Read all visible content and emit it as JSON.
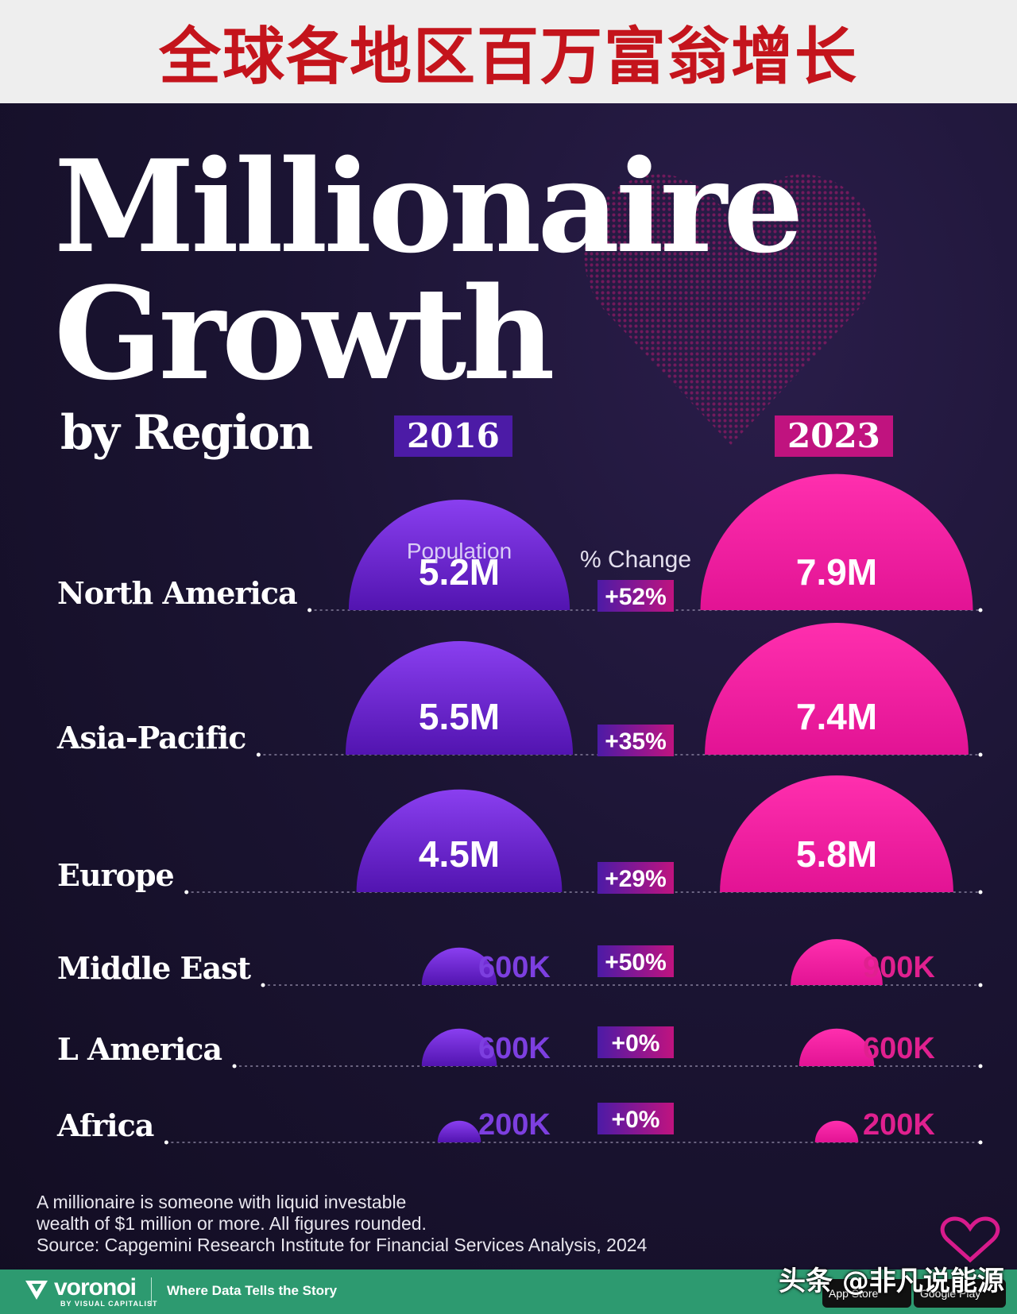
{
  "header": {
    "cn_title": "全球各地区百万富翁增长"
  },
  "title": {
    "line1": "Millionaire",
    "line2": "Growth",
    "subtitle": "by Region"
  },
  "years": [
    "2016",
    "2023"
  ],
  "col_labels": {
    "population": "Population",
    "pct_change": "% Change"
  },
  "chart_data": {
    "type": "bubble",
    "title": "Millionaire Growth by Region",
    "categories": [
      "North America",
      "Asia-Pacific",
      "Europe",
      "Middle East",
      "L      America",
      "Africa"
    ],
    "series": [
      {
        "name": "2016",
        "values": [
          5.2,
          5.5,
          4.5,
          0.6,
          0.6,
          0.2
        ],
        "labels": [
          "5.2M",
          "5.5M",
          "4.5M",
          "600K",
          "600K",
          "200K"
        ]
      },
      {
        "name": "2023",
        "values": [
          7.9,
          7.4,
          5.8,
          0.9,
          0.6,
          0.2
        ],
        "labels": [
          "7.9M",
          "7.4M",
          "5.8M",
          "900K",
          "600K",
          "200K"
        ]
      }
    ],
    "pct_change": [
      "+52%",
      "+35%",
      "+29%",
      "+50%",
      "+0%",
      "+0%"
    ],
    "unit": "millions of people"
  },
  "colors": {
    "y2016": "#5214b0",
    "y2016_light": "#8a3ff0",
    "y2023": "#e21394",
    "y2023_light": "#ff2fae",
    "pct_bg_a": "#4c1ba6",
    "pct_bg_b": "#c0137f"
  },
  "footnote": {
    "line1": "A millionaire is someone with liquid investable",
    "line2": "wealth of $1 million or more. All figures rounded.",
    "line3": "Source: Capgemini Research Institute for Financial Services Analysis, 2024"
  },
  "footer": {
    "logo": "voronoi",
    "logo_sub": "BY VISUAL CAPITALIST",
    "tagline": "Where Data Tells the Story",
    "store_apple": "App Store",
    "store_google": "Google Play",
    "watermark": "头条 @非凡说能源"
  }
}
